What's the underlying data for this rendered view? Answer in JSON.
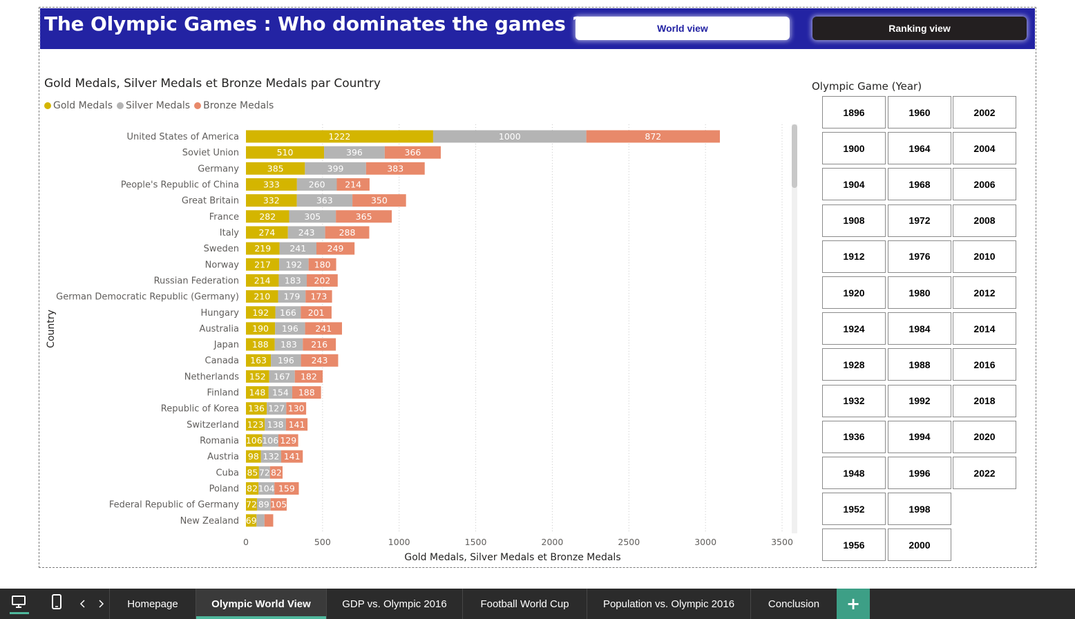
{
  "header": {
    "title": "The Olympic Games : Who dominates the games ?",
    "world_view_label": "World view",
    "ranking_view_label": "Ranking view",
    "background_color": "#2323a3"
  },
  "legend": {
    "gold_label": "Gold Medals",
    "silver_label": "Silver Medals",
    "bronze_label": "Bronze Medals"
  },
  "chart_data": {
    "type": "bar",
    "orientation": "horizontal",
    "stacked": true,
    "title": "Gold Medals, Silver Medals et Bronze Medals par Country",
    "xlabel": "Gold Medals, Silver Medals et Bronze Medals",
    "ylabel": "Country",
    "xlim": [
      0,
      3500
    ],
    "xticks": [
      0,
      500,
      1000,
      1500,
      2000,
      2500,
      3000,
      3500
    ],
    "grid": "vertical-dotted",
    "legend_position": "top-left",
    "categories": [
      "United States of America",
      "Soviet Union",
      "Germany",
      "People's Republic of China",
      "Great Britain",
      "France",
      "Italy",
      "Sweden",
      "Norway",
      "Russian Federation",
      "German Democratic Republic (Germany)",
      "Hungary",
      "Australia",
      "Japan",
      "Canada",
      "Netherlands",
      "Finland",
      "Republic of Korea",
      "Switzerland",
      "Romania",
      "Austria",
      "Cuba",
      "Poland",
      "Federal Republic of Germany",
      "New Zealand"
    ],
    "series": [
      {
        "name": "Gold Medals",
        "color": "#d4b500",
        "values": [
          1222,
          510,
          385,
          333,
          332,
          282,
          274,
          219,
          217,
          214,
          210,
          192,
          190,
          188,
          163,
          152,
          148,
          136,
          123,
          106,
          98,
          85,
          82,
          72,
          69
        ]
      },
      {
        "name": "Silver Medals",
        "color": "#b4b4b4",
        "values": [
          1000,
          396,
          399,
          260,
          363,
          305,
          243,
          241,
          192,
          183,
          179,
          166,
          196,
          183,
          196,
          167,
          154,
          127,
          138,
          106,
          132,
          72,
          104,
          89,
          52
        ]
      },
      {
        "name": "Bronze Medals",
        "color": "#e8896a",
        "values": [
          872,
          366,
          383,
          214,
          350,
          365,
          288,
          249,
          180,
          202,
          173,
          201,
          241,
          216,
          243,
          182,
          188,
          130,
          141,
          129,
          141,
          82,
          159,
          105,
          57
        ]
      }
    ],
    "show_label_for_last_row": [
      true,
      false,
      false
    ]
  },
  "slicer": {
    "title": "Olympic Game (Year)",
    "columns": [
      [
        "1896",
        "1900",
        "1904",
        "1908",
        "1912",
        "1920",
        "1924",
        "1928",
        "1932",
        "1936",
        "1948",
        "1952",
        "1956"
      ],
      [
        "1960",
        "1964",
        "1968",
        "1972",
        "1976",
        "1980",
        "1984",
        "1988",
        "1992",
        "1994",
        "1996",
        "1998",
        "2000"
      ],
      [
        "2002",
        "2004",
        "2006",
        "2008",
        "2010",
        "2012",
        "2014",
        "2016",
        "2018",
        "2020",
        "2022"
      ]
    ]
  },
  "tabs": [
    {
      "label": "Homepage",
      "active": false
    },
    {
      "label": "Olympic World View",
      "active": true
    },
    {
      "label": "GDP vs. Olympic 2016",
      "active": false
    },
    {
      "label": "Football World Cup",
      "active": false
    },
    {
      "label": "Population vs. Olympic 2016",
      "active": false
    },
    {
      "label": "Conclusion",
      "active": false
    }
  ],
  "add_page_label": "+",
  "accent_color": "#4fb79c"
}
